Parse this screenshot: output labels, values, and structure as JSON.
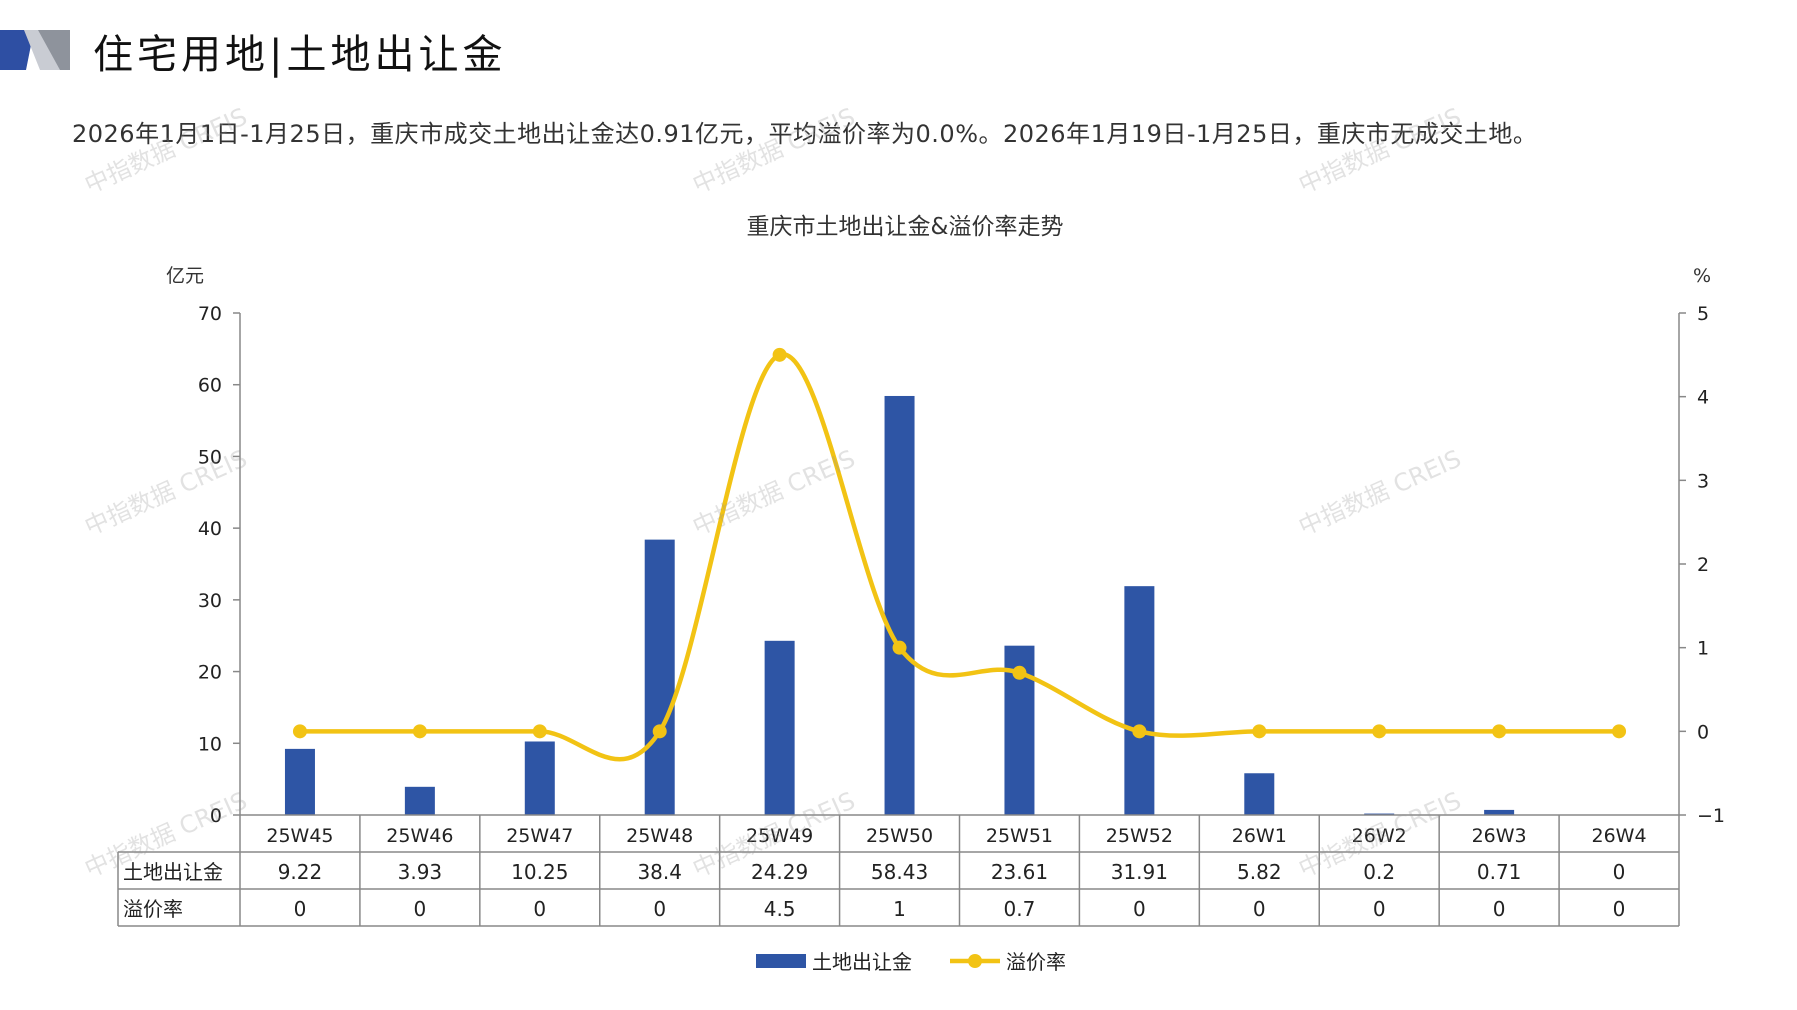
{
  "header": {
    "title": "住宅用地|土地出让金",
    "summary": "2026年1月1日-1月25日，重庆市成交土地出让金达0.91亿元，平均溢价率为0.0%。2026年1月19日-1月25日，重庆市无成交土地。"
  },
  "watermark": "中指数据 CREIS",
  "colors": {
    "bar": "#2E55A5",
    "line": "#F2C314",
    "logo_blue": "#2E4FA3",
    "logo_gray": "#9aa0aa"
  },
  "chart_data": {
    "type": "bar",
    "title": "重庆市土地出让金&溢价率走势",
    "categories": [
      "25W45",
      "25W46",
      "25W47",
      "25W48",
      "25W49",
      "25W50",
      "25W51",
      "25W52",
      "26W1",
      "26W2",
      "26W3",
      "26W4"
    ],
    "series": [
      {
        "name": "土地出让金",
        "type": "bar",
        "axis": "left",
        "values": [
          9.22,
          3.93,
          10.25,
          38.4,
          24.29,
          58.43,
          23.61,
          31.91,
          5.82,
          0.2,
          0.71,
          0
        ],
        "labels": [
          "9.22",
          "3.93",
          "10.25",
          "38.4",
          "24.29",
          "58.43",
          "23.61",
          "31.91",
          "5.82",
          "0.2",
          "0.71",
          "0"
        ]
      },
      {
        "name": "溢价率",
        "type": "line",
        "axis": "right",
        "values": [
          0,
          0,
          0,
          0,
          4.5,
          1,
          0.7,
          0,
          0,
          0,
          0,
          0
        ],
        "labels": [
          "0",
          "0",
          "0",
          "0",
          "4.5",
          "1",
          "0.7",
          "0",
          "0",
          "0",
          "0",
          "0"
        ]
      }
    ],
    "y_left": {
      "unit": "亿元",
      "min": 0,
      "max": 70,
      "ticks": [
        "0",
        "10",
        "20",
        "30",
        "40",
        "50",
        "60",
        "70"
      ]
    },
    "y_right": {
      "unit": "%",
      "min": -1,
      "max": 5,
      "ticks": [
        "−1",
        "0",
        "1",
        "2",
        "3",
        "4",
        "5"
      ]
    },
    "legend": {
      "position": "bottom",
      "items": [
        "土地出让金",
        "溢价率"
      ]
    },
    "table_row_labels": [
      "土地出让金",
      "溢价率"
    ],
    "grid": false
  }
}
